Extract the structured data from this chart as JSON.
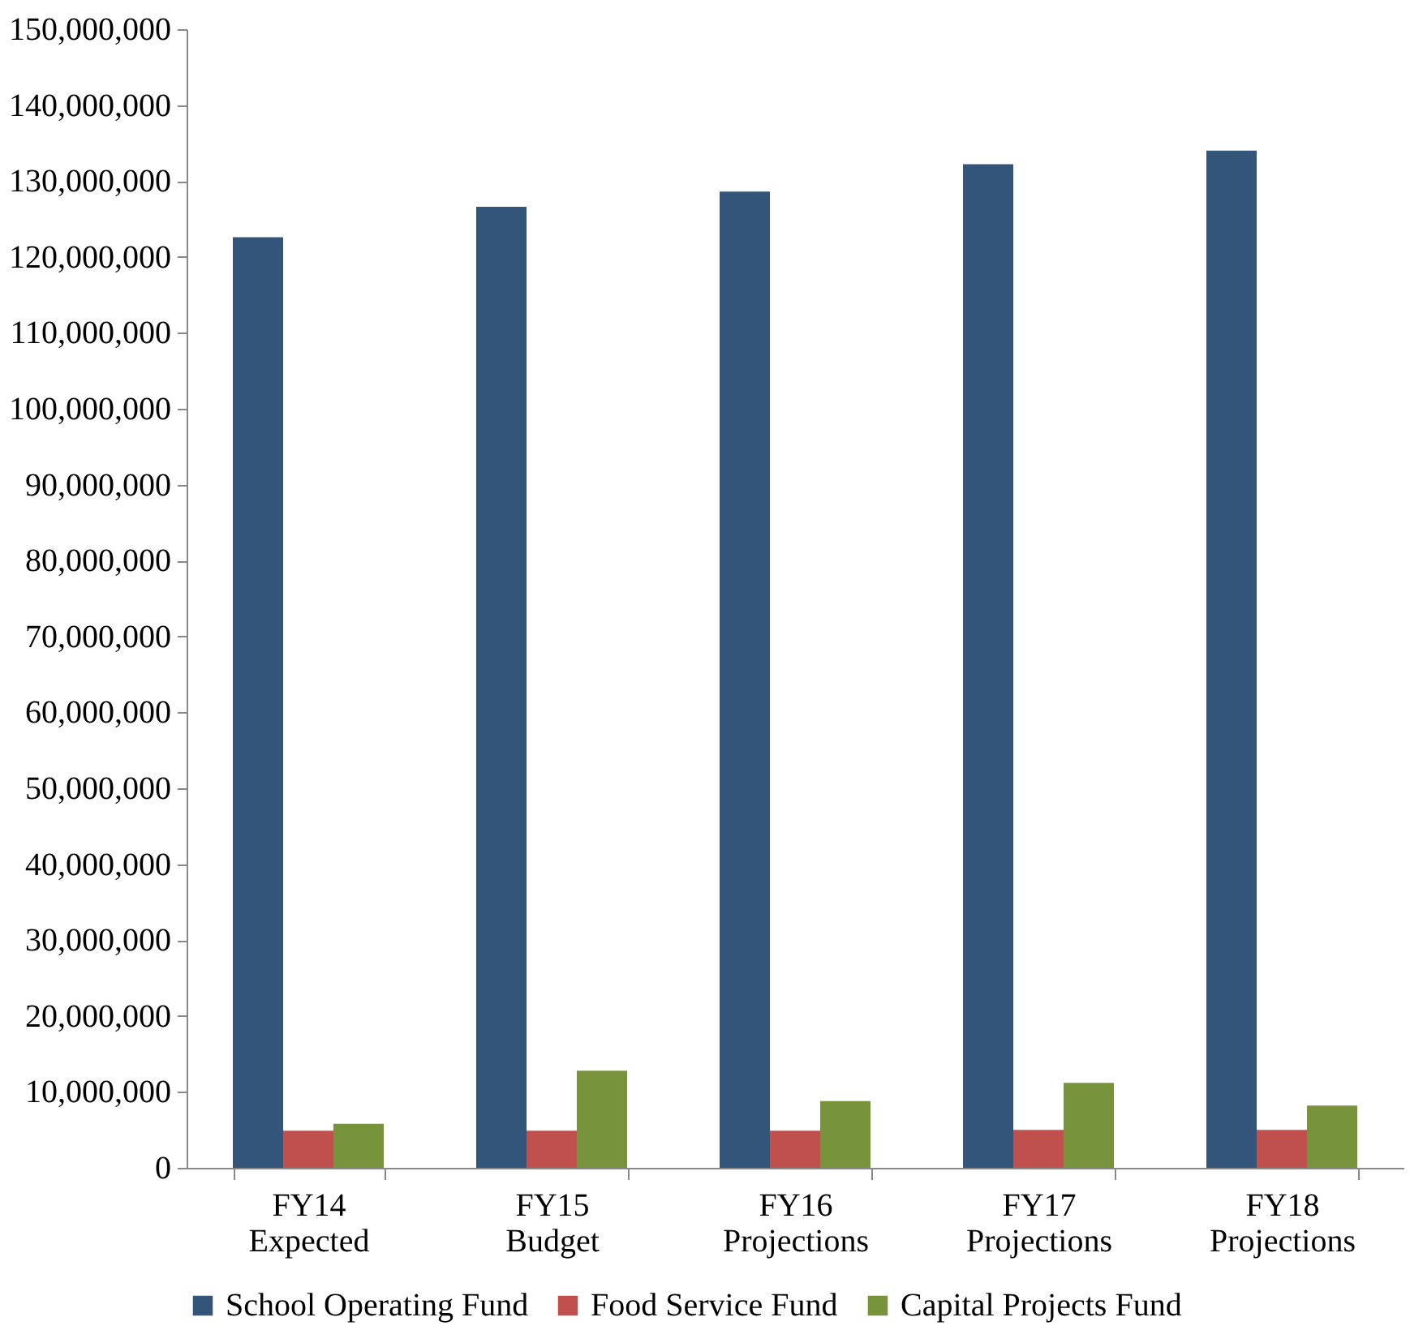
{
  "chart_data": {
    "type": "bar",
    "categories": [
      "FY14 Expected",
      "FY15 Budget",
      "FY16 Projections",
      "FY17 Projections",
      "FY18 Projections"
    ],
    "series": [
      {
        "name": "School Operating Fund",
        "color": "#335579",
        "values": [
          122600000,
          126600000,
          128600000,
          132200000,
          134000000
        ]
      },
      {
        "name": "Food Service Fund",
        "color": "#c0504d",
        "values": [
          4900000,
          4900000,
          4900000,
          5000000,
          5000000
        ]
      },
      {
        "name": "Capital Projects Fund",
        "color": "#77933c",
        "values": [
          5800000,
          12800000,
          8800000,
          11200000,
          8200000
        ]
      }
    ],
    "ylim": [
      0,
      150000000
    ],
    "yticks": [
      0,
      {
        "value": 10000000,
        "label": "10,000,000"
      },
      {
        "value": 20000000,
        "label": "20,000,000"
      },
      {
        "value": 30000000,
        "label": "30,000,000"
      },
      {
        "value": 40000000,
        "label": "40,000,000"
      },
      {
        "value": 50000000,
        "label": "50,000,000"
      },
      {
        "value": 60000000,
        "label": "60,000,000"
      },
      {
        "value": 70000000,
        "label": "70,000,000"
      },
      {
        "value": 80000000,
        "label": "80,000,000"
      },
      {
        "value": 90000000,
        "label": "90,000,000"
      },
      {
        "value": 100000000,
        "label": "100,000,000"
      },
      {
        "value": 110000000,
        "label": "110,000,000"
      },
      {
        "value": 120000000,
        "label": "120,000,000"
      },
      {
        "value": 130000000,
        "label": "130,000,000"
      },
      {
        "value": 140000000,
        "label": "140,000,000"
      },
      {
        "value": 150000000,
        "label": "150,000,000"
      }
    ],
    "grid": false,
    "legend": "bottom"
  }
}
